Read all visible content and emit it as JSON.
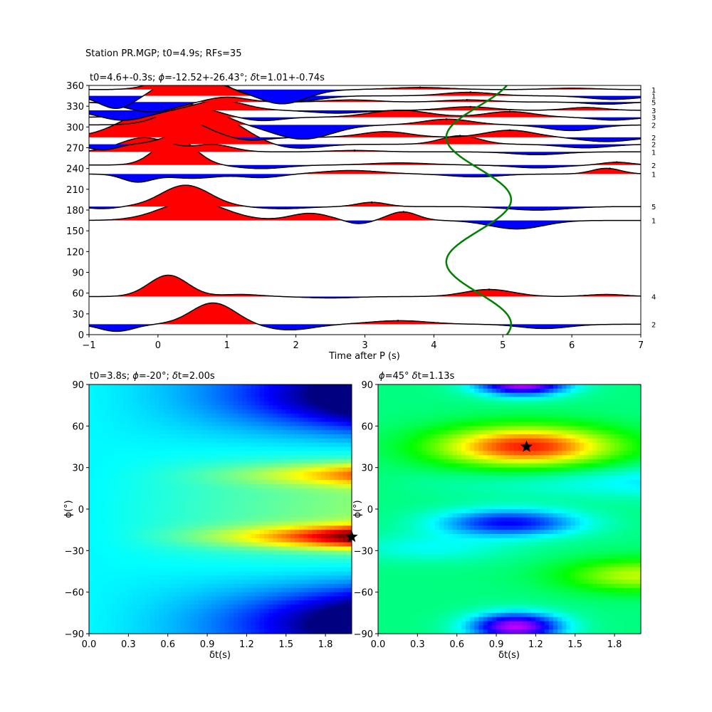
{
  "figure_title": "Station PR.MGP; t0=4.9s; RFs=35",
  "chart_data": [
    {
      "type": "line",
      "title_parts": {
        "prefix": "t0=4.6+-0.3s; ",
        "phi_sym": "ϕ",
        "phi_val": "=-12.52+-26.43°; ",
        "dt_sym": "δ",
        "dt_val": "t=1.01+-0.74s"
      },
      "xlabel": "Time after P (s)",
      "xlim": [
        -1,
        7
      ],
      "ylim": [
        0,
        360
      ],
      "xticks": [
        "−1",
        "0",
        "1",
        "2",
        "3",
        "4",
        "5",
        "6",
        "7"
      ],
      "yticks": [
        "0",
        "30",
        "60",
        "90",
        "120",
        "150",
        "180",
        "210",
        "240",
        "270",
        "300",
        "330",
        "360"
      ],
      "fill_positive_color": "#ff0000",
      "fill_negative_color": "#0000ff",
      "model_curve_color": "#008000",
      "traces": [
        {
          "baz": 15,
          "count": "2",
          "peak": 3.48,
          "pulses": [
            [
              -0.6,
              -10,
              0.35
            ],
            [
              0.8,
              30,
              0.45
            ],
            [
              1.9,
              -8,
              0.5
            ],
            [
              3.5,
              5,
              0.6
            ],
            [
              5.6,
              -6,
              0.5
            ]
          ]
        },
        {
          "baz": 55,
          "count": "4",
          "peak": 4.8,
          "pulses": [
            [
              0.15,
              30,
              0.4
            ],
            [
              1.2,
              3,
              0.4
            ],
            [
              2.5,
              -2,
              0.5
            ],
            [
              4.8,
              10,
              0.5
            ],
            [
              6.5,
              3,
              0.4
            ]
          ]
        },
        {
          "baz": 165,
          "count": "1",
          "peak": 3.56,
          "pulses": [
            [
              0.5,
              27,
              0.65
            ],
            [
              2.2,
              10,
              0.4
            ],
            [
              2.9,
              -5,
              0.25
            ],
            [
              3.55,
              12,
              0.3
            ],
            [
              5.2,
              -12,
              0.55
            ]
          ]
        },
        {
          "baz": 185,
          "count": "5",
          "peak": 3.1,
          "pulses": [
            [
              -0.8,
              -3,
              0.3
            ],
            [
              0.4,
              30,
              0.5
            ],
            [
              1.8,
              -3,
              0.5
            ],
            [
              3.1,
              6,
              0.3
            ],
            [
              5.5,
              -5,
              0.6
            ]
          ]
        },
        {
          "baz": 232,
          "count": "1",
          "peak": 6.55,
          "pulses": [
            [
              -0.3,
              -11,
              0.3
            ],
            [
              0.5,
              -6,
              0.5
            ],
            [
              1.5,
              -5,
              0.4
            ],
            [
              2.8,
              5,
              0.6
            ],
            [
              4.6,
              -4,
              0.5
            ],
            [
              6.5,
              8,
              0.3
            ]
          ]
        },
        {
          "baz": 245,
          "count": "2",
          "peak": 6.65,
          "pulses": [
            [
              0.25,
              38,
              0.4
            ],
            [
              1.5,
              -5,
              0.5
            ],
            [
              3.5,
              3,
              0.6
            ],
            [
              5.5,
              -4,
              0.5
            ],
            [
              6.65,
              4,
              0.3
            ]
          ]
        },
        {
          "baz": 264,
          "count": "1",
          "peak": 2.85,
          "pulses": [
            [
              -0.2,
              20,
              0.5
            ],
            [
              0.8,
              10,
              0.4
            ],
            [
              2.85,
              2,
              0.5
            ],
            [
              5.5,
              -4,
              0.5
            ]
          ]
        },
        {
          "baz": 275,
          "count": "2",
          "peak": 4.38,
          "pulses": [
            [
              -0.8,
              -8,
              0.3
            ],
            [
              0.8,
              40,
              0.6
            ],
            [
              2.0,
              -6,
              0.5
            ],
            [
              4.38,
              12,
              0.4
            ],
            [
              6.2,
              -5,
              0.5
            ]
          ]
        },
        {
          "baz": 285,
          "count": "2",
          "peak": 5.1,
          "pulses": [
            [
              0.0,
              40,
              0.7
            ],
            [
              1.3,
              -5,
              0.4
            ],
            [
              3.3,
              8,
              0.5
            ],
            [
              5.1,
              10,
              0.5
            ],
            [
              6.5,
              -6,
              0.5
            ]
          ]
        },
        {
          "baz": 303,
          "count": "2",
          "peak": 4.18,
          "pulses": [
            [
              0.5,
              28,
              0.55
            ],
            [
              2.1,
              -20,
              0.6
            ],
            [
              4.2,
              8,
              0.5
            ],
            [
              6.0,
              -8,
              0.5
            ]
          ]
        },
        {
          "baz": 314,
          "count": "3",
          "peak": 5.1,
          "pulses": [
            [
              0.3,
              20,
              0.6
            ],
            [
              1.5,
              -5,
              0.4
            ],
            [
              3.5,
              10,
              0.6
            ],
            [
              5.1,
              8,
              0.5
            ],
            [
              6.6,
              -4,
              0.4
            ]
          ]
        },
        {
          "baz": 324,
          "count": "3",
          "peak": 4.53,
          "pulses": [
            [
              -0.5,
              -14,
              0.5
            ],
            [
              0.9,
              14,
              0.5
            ],
            [
              2.6,
              -4,
              0.5
            ],
            [
              4.5,
              5,
              0.5
            ],
            [
              6.2,
              4,
              0.4
            ]
          ]
        },
        {
          "baz": 336,
          "count": "5",
          "peak": 4.48,
          "pulses": [
            [
              -0.1,
              -14,
              0.5
            ],
            [
              1.0,
              7,
              0.4
            ],
            [
              2.8,
              3,
              0.5
            ],
            [
              4.5,
              3,
              0.5
            ],
            [
              6.5,
              -3,
              0.4
            ]
          ]
        },
        {
          "baz": 345,
          "count": "1",
          "peak": 4.53,
          "pulses": [
            [
              -0.6,
              -18,
              0.35
            ],
            [
              0.5,
              40,
              0.5
            ],
            [
              2.0,
              -8,
              0.5
            ],
            [
              4.5,
              5,
              0.5
            ],
            [
              6.6,
              -5,
              0.5
            ]
          ]
        },
        {
          "baz": 354,
          "count": "1",
          "peak": 3.8,
          "pulses": [
            [
              0.4,
              25,
              0.5
            ],
            [
              1.8,
              -20,
              0.5
            ],
            [
              3.8,
              3,
              0.6
            ],
            [
              6.0,
              2,
              0.5
            ]
          ]
        }
      ],
      "model_curve": {
        "center": 4.65,
        "amplitude": 0.47,
        "phase_deg": 60
      }
    },
    {
      "type": "heatmap",
      "title_parts": {
        "prefix": "t0=3.8s; ",
        "phi_sym": "ϕ",
        "phi_val": "=-20°; ",
        "dt_sym": "δ",
        "dt_val": "t=2.00s"
      },
      "xlabel": "δt(s)",
      "ylabel": "ϕ(°)",
      "xlim": [
        0,
        2.0
      ],
      "ylim": [
        -90,
        90
      ],
      "xticks": [
        "0.0",
        "0.3",
        "0.6",
        "0.9",
        "1.2",
        "1.5",
        "1.8"
      ],
      "yticks": [
        "−90",
        "−60",
        "−30",
        "0",
        "30",
        "60",
        "90"
      ],
      "best": {
        "dt": 2.0,
        "phi": -20
      },
      "colormap": "jet",
      "field_name": "energy-surface"
    },
    {
      "type": "heatmap",
      "title_parts": {
        "prefix": "",
        "phi_sym": "ϕ",
        "phi_val": "=45° ",
        "dt_sym": "δ",
        "dt_val": "t=1.13s"
      },
      "xlabel": "δt(s)",
      "ylabel": "ϕ(°)",
      "xlim": [
        0,
        2.0
      ],
      "ylim": [
        -90,
        90
      ],
      "xticks": [
        "0.0",
        "0.3",
        "0.6",
        "0.9",
        "1.2",
        "1.5",
        "1.8"
      ],
      "yticks": [
        "−90",
        "−60",
        "−30",
        "0",
        "30",
        "60",
        "90"
      ],
      "best": {
        "dt": 1.13,
        "phi": 45
      },
      "colormap": "hsv",
      "field_name": "cross-correlation-surface"
    }
  ]
}
